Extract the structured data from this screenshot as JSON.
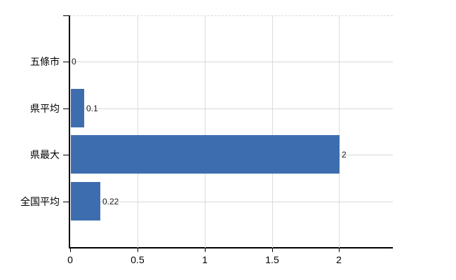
{
  "page": {
    "background_color": "#ffffff"
  },
  "chart_data": {
    "type": "bar",
    "orientation": "horizontal",
    "title": "",
    "xlabel": "",
    "ylabel": "",
    "categories": [
      "五條市",
      "県平均",
      "県最大",
      "全国平均"
    ],
    "values": [
      0,
      0.1,
      2,
      0.22
    ],
    "value_labels": [
      "0",
      "0.1",
      "2",
      "0.22"
    ],
    "xlim": [
      0,
      2.4
    ],
    "x_ticks": [
      0,
      0.5,
      1,
      1.5,
      2
    ],
    "x_tick_labels": [
      "0",
      "0.5",
      "1",
      "1.5",
      "2"
    ],
    "grid": true,
    "legend": false,
    "colors": {
      "bar": "#3d6dae",
      "vertical_gridline": "#dcdcdc",
      "horizontal_gridline": "#d4dad4",
      "plot_top_border": "#d9d9d9",
      "axis": "#000000",
      "category_label": "#000000",
      "tick_label": "#000000",
      "value_label": "#1a1a1a"
    }
  }
}
